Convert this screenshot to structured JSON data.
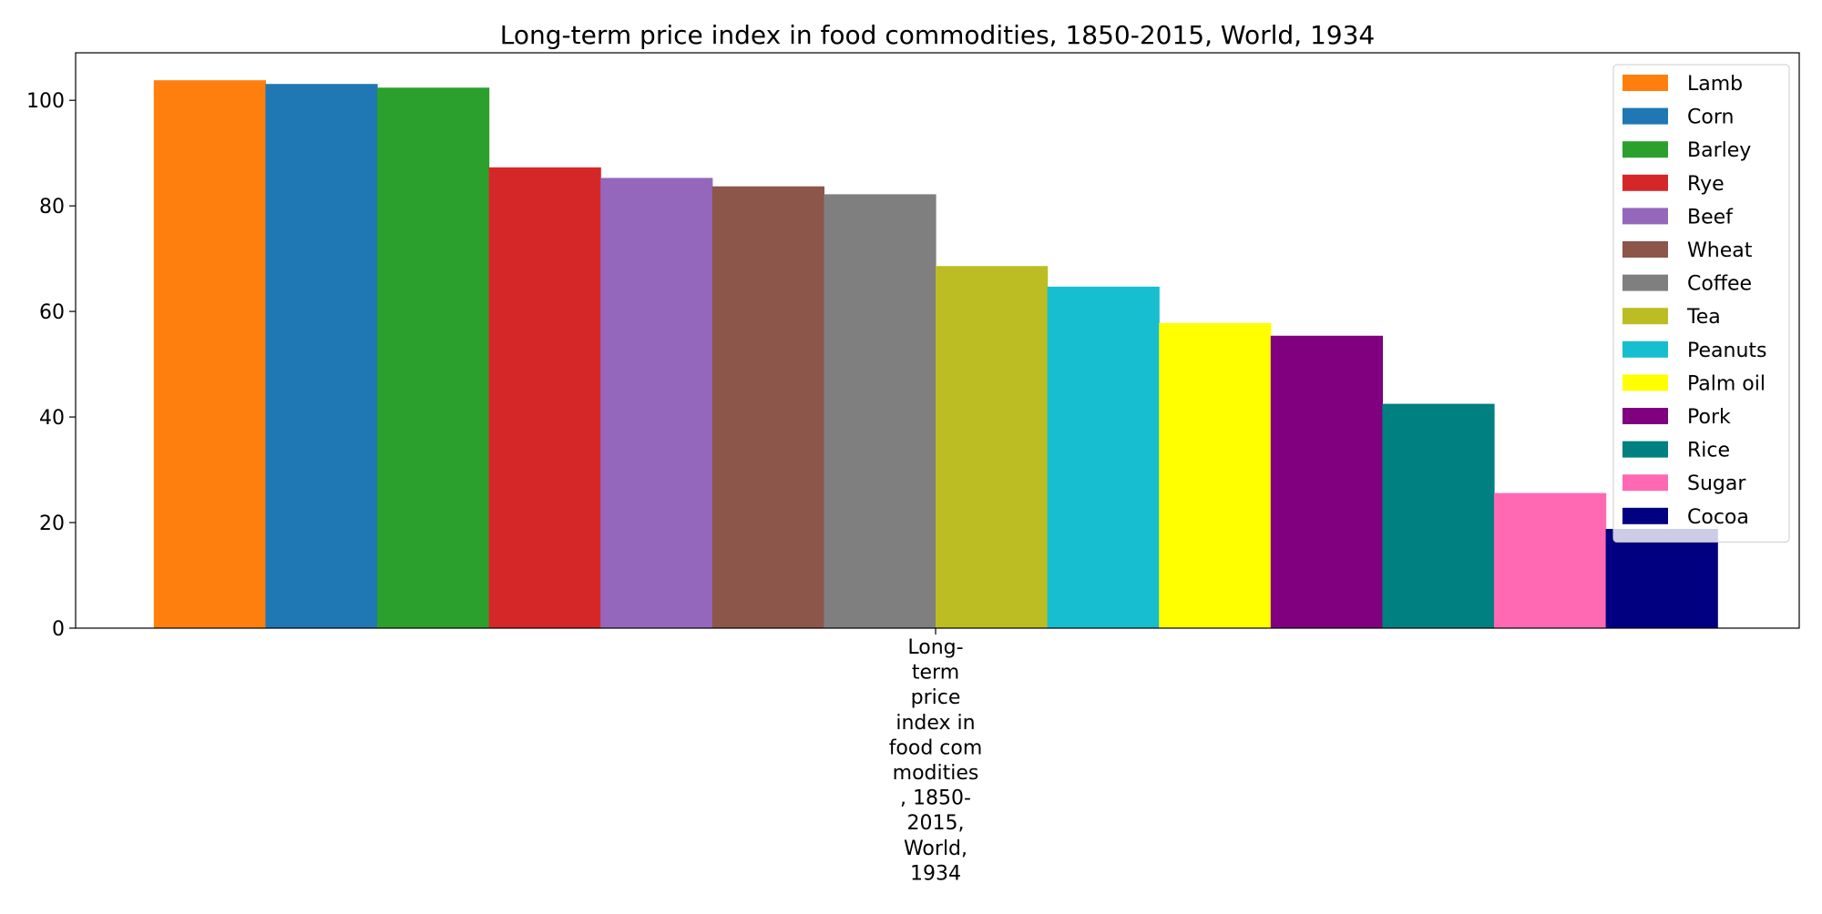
{
  "chart_data": {
    "type": "bar",
    "title": "Long-term price index in food commodities, 1850-2015, World, 1934",
    "xlabel": "",
    "ylabel": "",
    "ylim": [
      0,
      109
    ],
    "yticks": [
      0,
      20,
      40,
      60,
      80,
      100
    ],
    "categories": [
      "Long-term price index in food commodities, 1850-2015, World, 1934"
    ],
    "category_tick_lines": [
      "Long-",
      "term",
      "price",
      "index in",
      "food com",
      "modities",
      ", 1850-",
      "2015,",
      "World,",
      "1934"
    ],
    "grid": false,
    "legend_position": "top-right",
    "series": [
      {
        "name": "Lamb",
        "values": [
          103.8
        ],
        "color": "#ff7f0e"
      },
      {
        "name": "Corn",
        "values": [
          103.1
        ],
        "color": "#1f77b4"
      },
      {
        "name": "Barley",
        "values": [
          102.4
        ],
        "color": "#2ca02c"
      },
      {
        "name": "Rye",
        "values": [
          87.3
        ],
        "color": "#d62728"
      },
      {
        "name": "Beef",
        "values": [
          85.3
        ],
        "color": "#9467bd"
      },
      {
        "name": "Wheat",
        "values": [
          83.7
        ],
        "color": "#8c564b"
      },
      {
        "name": "Coffee",
        "values": [
          82.2
        ],
        "color": "#7f7f7f"
      },
      {
        "name": "Tea",
        "values": [
          68.6
        ],
        "color": "#bcbd22"
      },
      {
        "name": "Peanuts",
        "values": [
          64.7
        ],
        "color": "#17becf"
      },
      {
        "name": "Palm oil",
        "values": [
          57.8
        ],
        "color": "#ffff00"
      },
      {
        "name": "Pork",
        "values": [
          55.4
        ],
        "color": "#800080"
      },
      {
        "name": "Rice",
        "values": [
          42.5
        ],
        "color": "#008080"
      },
      {
        "name": "Sugar",
        "values": [
          25.6
        ],
        "color": "#ff69b4"
      },
      {
        "name": "Cocoa",
        "values": [
          18.8
        ],
        "color": "#000080"
      }
    ]
  }
}
